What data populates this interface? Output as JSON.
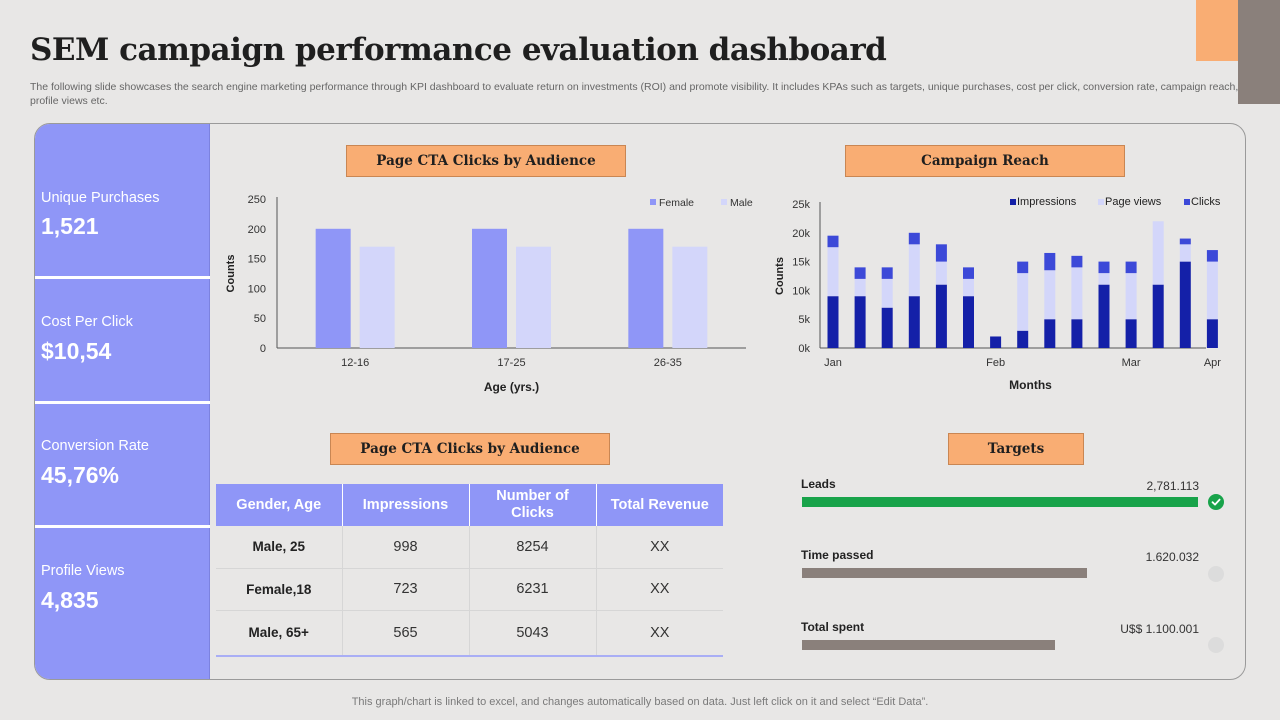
{
  "title": "SEM campaign performance evaluation dashboard",
  "subtitle": "The following slide showcases the search engine marketing performance through KPI dashboard to evaluate return on investments (ROI) and promote visibility. It includes KPAs such as targets, unique purchases, cost per click, conversion rate, campaign reach, profile views etc.",
  "kpis": [
    {
      "label": "Unique Purchases",
      "value": "1,521"
    },
    {
      "label": "Cost Per Click",
      "value": "$10,54"
    },
    {
      "label": "Conversion Rate",
      "value": "45,76%"
    },
    {
      "label": "Profile Views",
      "value": "4,835"
    }
  ],
  "sections": {
    "cta_chart": "Page CTA Clicks by Audience",
    "reach": "Campaign Reach",
    "cta_table": "Page CTA Clicks by Audience",
    "targets": "Targets"
  },
  "colors": {
    "female": "#8f96f7",
    "male": "#d3d6fa",
    "impressions": "#1420a8",
    "page_views": "#d3d6fa",
    "clicks": "#3c49d8",
    "target_done": "#18a34a",
    "target_progress": "#8a807b"
  },
  "chart_data": [
    {
      "type": "bar",
      "title": "Page CTA Clicks by Audience",
      "categories": [
        "12-16",
        "17-25",
        "26-35"
      ],
      "series": [
        {
          "name": "Female",
          "values": [
            200,
            200,
            200
          ]
        },
        {
          "name": "Male",
          "values": [
            170,
            170,
            170
          ]
        }
      ],
      "xlabel": "Age (yrs.)",
      "ylabel": "Counts",
      "ylim": [
        0,
        250
      ],
      "yticks": [
        "0",
        "50",
        "100",
        "150",
        "200",
        "250"
      ],
      "legend": "top-right"
    },
    {
      "type": "bar",
      "stacked": true,
      "title": "Campaign Reach",
      "categories": [
        "Jan",
        "",
        "",
        "",
        "",
        "",
        "Feb",
        "",
        "",
        "",
        "",
        "Mar",
        "",
        "",
        "Apr"
      ],
      "series": [
        {
          "name": "Impressions",
          "values": [
            9000,
            9000,
            7000,
            9000,
            11000,
            9000,
            2000,
            3000,
            5000,
            5000,
            11000,
            5000,
            11000,
            15000,
            5000
          ]
        },
        {
          "name": "Page views",
          "values": [
            8500,
            3000,
            5000,
            9000,
            4000,
            3000,
            0,
            10000,
            8500,
            9000,
            2000,
            8000,
            11000,
            3000,
            10000
          ]
        },
        {
          "name": "Clicks",
          "values": [
            2000,
            2000,
            2000,
            2000,
            3000,
            2000,
            0,
            2000,
            3000,
            2000,
            2000,
            2000,
            0,
            1000,
            2000
          ]
        }
      ],
      "xlabel": "Months",
      "ylabel": "Counts",
      "ylim": [
        0,
        25000
      ],
      "yticks": [
        "0k",
        "5k",
        "10k",
        "15k",
        "20k",
        "25k"
      ],
      "legend": "top"
    }
  ],
  "table": {
    "headers": [
      "Gender, Age",
      "Impressions",
      "Number of Clicks",
      "Total Revenue"
    ],
    "rows": [
      [
        "Male, 25",
        "998",
        "8254",
        "XX"
      ],
      [
        "Female,18",
        "723",
        "6231",
        "XX"
      ],
      [
        "Male, 65+",
        "565",
        "5043",
        "XX"
      ]
    ]
  },
  "targets": [
    {
      "label": "Leads",
      "value": "2,781.113",
      "progress": 1.0,
      "status": "done"
    },
    {
      "label": "Time passed",
      "value": "1.620.032",
      "progress": 0.72,
      "status": "pending"
    },
    {
      "label": "Total spent",
      "value": "U$$ 1.100.001",
      "progress": 0.64,
      "status": "pending"
    }
  ],
  "footer": "This graph/chart is linked to excel,  and changes automatically based on data. Just left click on it and select “Edit Data”."
}
